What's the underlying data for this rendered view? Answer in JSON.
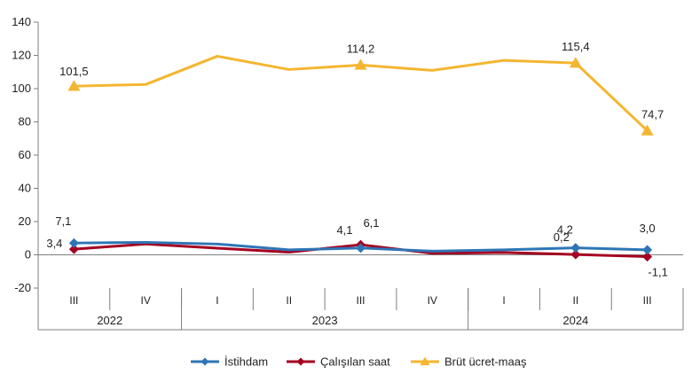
{
  "chart_data": {
    "type": "line",
    "title": "",
    "xlabel": "",
    "ylabel": "",
    "ylim": [
      -20,
      140
    ],
    "yticks": [
      -20,
      0,
      20,
      40,
      60,
      80,
      100,
      120,
      140
    ],
    "ytick_labels": [
      "-20",
      "0",
      "20",
      "40",
      "60",
      "80",
      "100",
      "120",
      "140"
    ],
    "grid": false,
    "legend_position": "bottom",
    "categories": [
      "III",
      "IV",
      "I",
      "II",
      "III",
      "IV",
      "I",
      "II",
      "III"
    ],
    "year_groups": [
      {
        "label": "2022",
        "start": 0,
        "end": 1
      },
      {
        "label": "2023",
        "start": 2,
        "end": 5
      },
      {
        "label": "2024",
        "start": 6,
        "end": 8
      }
    ],
    "series": [
      {
        "name": "İstihdam",
        "color": "#2E75B6",
        "marker": "diamond",
        "values": [
          7.1,
          7.5,
          6.5,
          3.0,
          4.1,
          2.2,
          3.0,
          4.2,
          3.0
        ],
        "marked": [
          0,
          4,
          7,
          8
        ],
        "labels": {
          "0": "7,1",
          "4": "4,1",
          "7": "4,2",
          "8": "3,0"
        }
      },
      {
        "name": "Çalışılan saat",
        "color": "#A50021",
        "marker": "diamond",
        "values": [
          3.4,
          6.5,
          4.0,
          1.6,
          6.1,
          0.9,
          1.4,
          0.2,
          -1.1
        ],
        "marked": [
          0,
          4,
          7,
          8
        ],
        "labels": {
          "0": "3,4",
          "4": "6,1",
          "7": "0,2",
          "8": "-1,1"
        }
      },
      {
        "name": "Brüt ücret-maaş",
        "color": "#F4B630",
        "marker": "triangle",
        "values": [
          101.5,
          102.5,
          119.5,
          111.5,
          114.2,
          111.0,
          117.0,
          115.4,
          74.7
        ],
        "marked": [
          0,
          4,
          7,
          8
        ],
        "labels": {
          "0": "101,5",
          "4": "114,2",
          "7": "115,4",
          "8": "74,7"
        }
      }
    ]
  }
}
